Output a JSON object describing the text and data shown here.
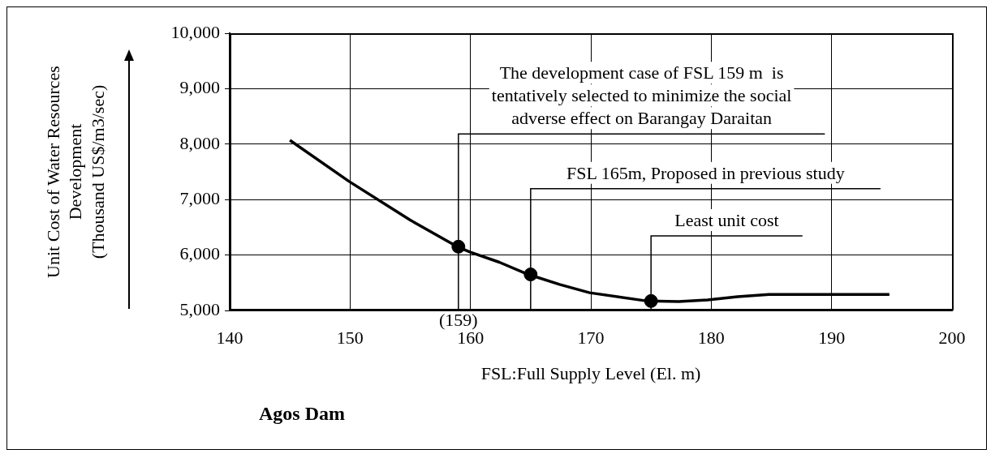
{
  "chart_data": {
    "type": "line",
    "title": "Agos Dam",
    "xlabel": "FSL:Full Supply Level (El. m)",
    "ylabel": "Unit Cost of Water Resources\nDevelopment\n(Thousand US$/m3/sec)",
    "xlim": [
      140,
      200
    ],
    "xticks": [
      140,
      150,
      160,
      170,
      180,
      190,
      200
    ],
    "ylim": [
      5000,
      10000
    ],
    "yticks": [
      {
        "value": 5000,
        "label": "5,000"
      },
      {
        "value": 6000,
        "label": "6,000"
      },
      {
        "value": 7000,
        "label": "7,000"
      },
      {
        "value": 8000,
        "label": "8,000"
      },
      {
        "value": 9000,
        "label": "9,000"
      },
      {
        "value": 10000,
        "label": "10,000"
      }
    ],
    "grid": true,
    "legend": false,
    "series": [
      {
        "color": "#000000",
        "x": [
          145,
          149.9,
          155,
          158.9,
          160,
          162.4,
          164.8,
          167.4,
          169.9,
          174.7,
          177.3,
          179.7,
          182.2,
          184.8,
          194.8
        ],
        "values": [
          8070,
          7330,
          6630,
          6150,
          6050,
          5870,
          5650,
          5470,
          5320,
          5170,
          5160,
          5190,
          5250,
          5290,
          5290
        ]
      },
      {
        "type": "scatter",
        "color": "#000000",
        "x": [
          159,
          165,
          175
        ],
        "values": [
          6150,
          5650,
          5170
        ]
      }
    ],
    "ref_lines": [
      {
        "axis": "x",
        "value": 159,
        "label": "The development case of FSL 159 m  is tentatively selected to minimize the social adverse effect on Barangay Daraitan"
      },
      {
        "axis": "x",
        "value": 165,
        "label": "FSL 165m, Proposed in previous study"
      },
      {
        "axis": "x",
        "value": 175,
        "label": "Least unit cost"
      }
    ],
    "annotations": [
      "(159)"
    ]
  }
}
